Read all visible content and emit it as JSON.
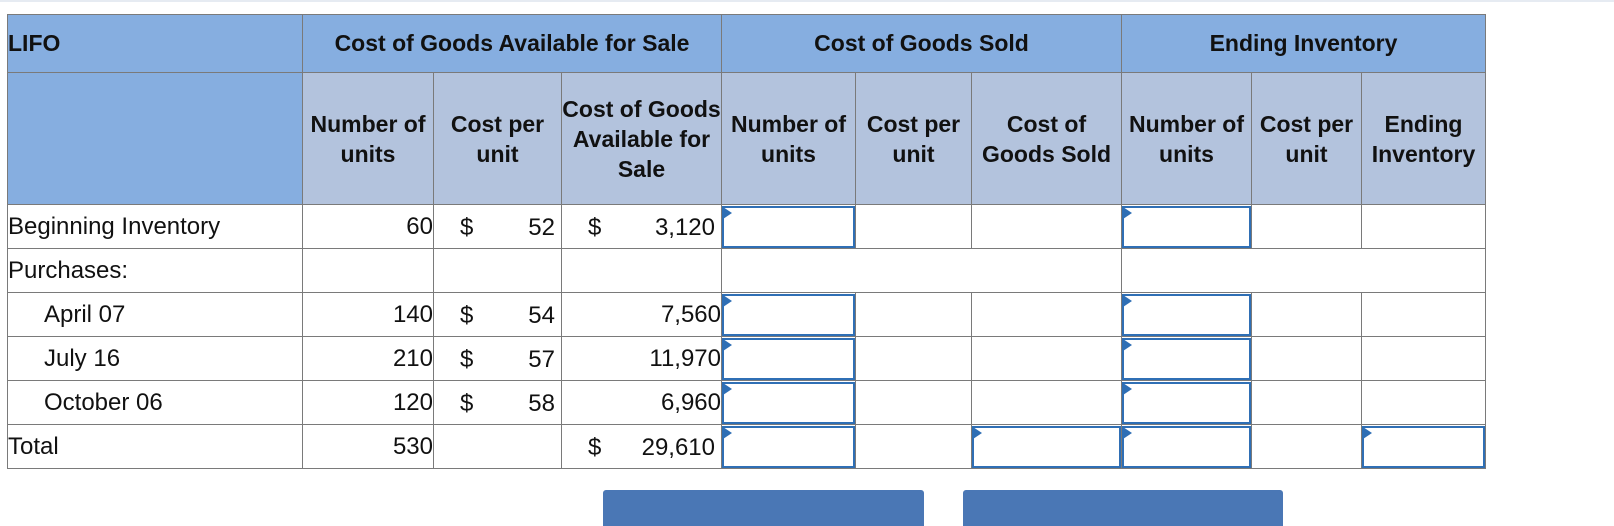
{
  "table": {
    "title": "LIFO",
    "group_headers": [
      "Cost of Goods Available for Sale",
      "Cost of Goods Sold",
      "Ending Inventory"
    ],
    "sub_headers": {
      "available": [
        "Number of units",
        "Cost per unit",
        "Cost of Goods Available for Sale"
      ],
      "sold": [
        "Number of units",
        "Cost per unit",
        "Cost of Goods Sold"
      ],
      "ending": [
        "Number of units",
        "Cost per unit",
        "Ending Inventory"
      ]
    },
    "rows": [
      {
        "label": "Beginning Inventory",
        "units": "60",
        "cost_symbol": "$",
        "cost": "52",
        "total_symbol": "$",
        "total": "3,120"
      },
      {
        "label": "Purchases:",
        "units": "",
        "cost_symbol": "",
        "cost": "",
        "total_symbol": "",
        "total": ""
      },
      {
        "label": "April 07",
        "units": "140",
        "cost_symbol": "$",
        "cost": "54",
        "total_symbol": "",
        "total": "7,560"
      },
      {
        "label": "July 16",
        "units": "210",
        "cost_symbol": "$",
        "cost": "57",
        "total_symbol": "",
        "total": "11,970"
      },
      {
        "label": "October 06",
        "units": "120",
        "cost_symbol": "$",
        "cost": "58",
        "total_symbol": "",
        "total": "6,960"
      },
      {
        "label": "Total",
        "units": "530",
        "cost_symbol": "",
        "cost": "",
        "total_symbol": "$",
        "total": "29,610"
      }
    ]
  },
  "colors": {
    "group_header_bg": "#86aee0",
    "sub_header_bg": "#b3c3dd",
    "input_border": "#2f6fb5",
    "button_bg": "#4a77b5"
  }
}
